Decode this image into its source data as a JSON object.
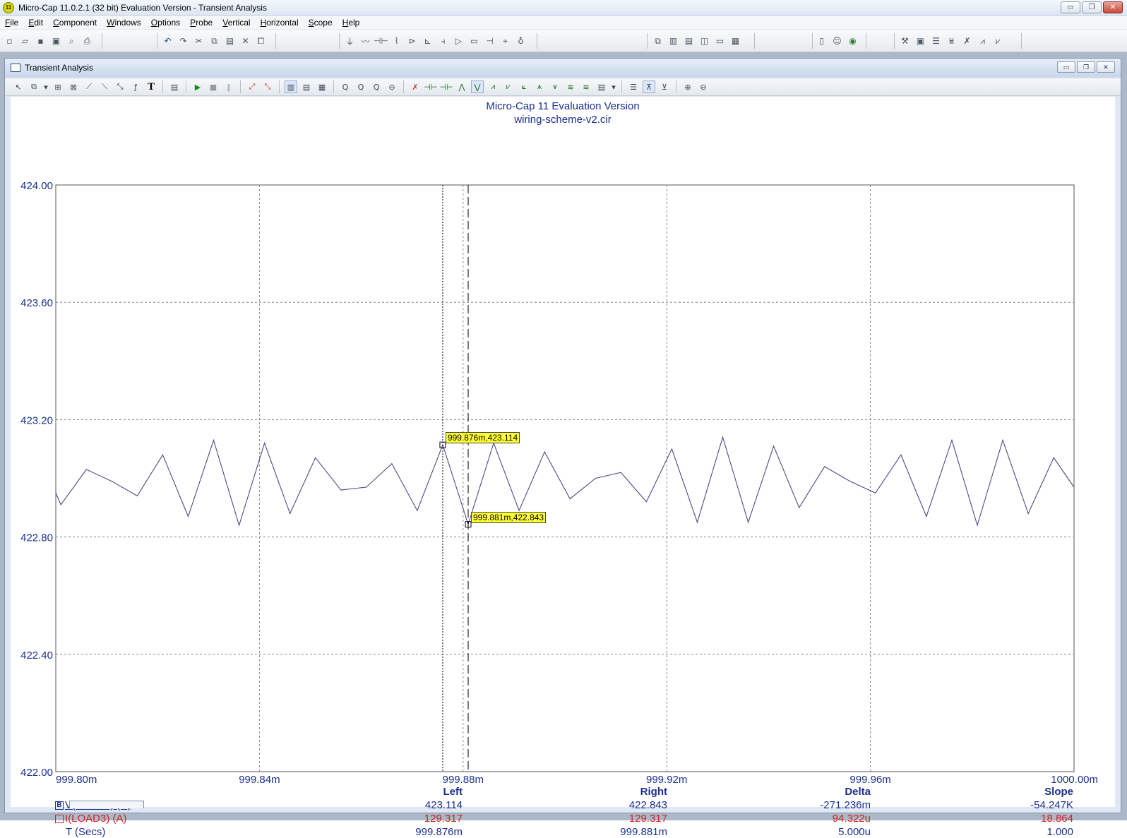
{
  "window": {
    "title": "Micro-Cap 11.0.2.1 (32 bit) Evaluation Version - Transient Analysis",
    "app_icon": "11",
    "controls": {
      "minimize": "▭",
      "maximize": "❐",
      "close": "✕"
    }
  },
  "menu": [
    {
      "u": "F",
      "rest": "ile"
    },
    {
      "u": "E",
      "rest": "dit"
    },
    {
      "u": "C",
      "rest": "omponent"
    },
    {
      "u": "W",
      "rest": "indows"
    },
    {
      "u": "O",
      "rest": "ptions"
    },
    {
      "u": "P",
      "rest": "robe"
    },
    {
      "u": "V",
      "rest": "ertical"
    },
    {
      "u": "H",
      "rest": "orizontal"
    },
    {
      "u": "S",
      "rest": "cope"
    },
    {
      "u": "H",
      "rest": "elp"
    }
  ],
  "child": {
    "title": "Transient Analysis"
  },
  "chart_data": {
    "type": "line",
    "title": "Micro-Cap 11 Evaluation Version",
    "subtitle": "wiring-scheme-v2.cir",
    "y_ticks": [
      "424.00",
      "423.60",
      "423.20",
      "422.80",
      "422.40",
      "422.00"
    ],
    "ylim": [
      422.0,
      424.0
    ],
    "x_ticks": [
      "999.80m",
      "999.84m",
      "999.88m",
      "999.92m",
      "999.96m",
      "1000.00m"
    ],
    "xlim": [
      999.8,
      1000.0
    ],
    "x_unit": "ms",
    "grid": true,
    "series": [
      {
        "name": "V(LOAD3) (V)",
        "color": "#4a4a8a",
        "x": [
          999.8,
          999.801,
          999.806,
          999.811,
          999.816,
          999.821,
          999.826,
          999.831,
          999.836,
          999.841,
          999.846,
          999.851,
          999.856,
          999.861,
          999.866,
          999.871,
          999.876,
          999.881,
          999.886,
          999.891,
          999.896,
          999.901,
          999.906,
          999.911,
          999.916,
          999.921,
          999.926,
          999.931,
          999.936,
          999.941,
          999.946,
          999.951,
          999.956,
          999.961,
          999.966,
          999.971,
          999.976,
          999.981,
          999.986,
          999.991,
          999.996,
          1000.0
        ],
        "y": [
          422.95,
          422.91,
          423.03,
          422.99,
          422.94,
          423.08,
          422.87,
          423.13,
          422.84,
          423.12,
          422.88,
          423.07,
          422.96,
          422.97,
          423.05,
          422.89,
          423.114,
          422.843,
          423.12,
          422.89,
          423.09,
          422.93,
          423.0,
          423.02,
          422.92,
          423.1,
          422.85,
          423.14,
          422.85,
          423.11,
          422.9,
          423.04,
          422.99,
          422.95,
          423.08,
          422.87,
          423.13,
          422.84,
          423.13,
          422.88,
          423.07,
          422.97
        ]
      }
    ],
    "cursors": {
      "left_x": 999.876,
      "right_x": 999.881,
      "left_label": "999.876m,423.114",
      "right_label": "999.881m,422.843",
      "left_y": 423.114,
      "right_y": 422.843
    }
  },
  "cursor_table": {
    "headers": {
      "left": "Left",
      "right": "Right",
      "delta": "Delta",
      "slope": "Slope"
    },
    "rows": [
      {
        "marker": "B",
        "name": "V(LOAD3) (V)",
        "color": "#1a2f8f",
        "left": "423.114",
        "right": "422.843",
        "delta": "-271.236m",
        "slope": "-54.247K"
      },
      {
        "marker": "",
        "name": "I(LOAD3) (A)",
        "color": "#cc2222",
        "left": "129.317",
        "right": "129.317",
        "delta": "94.322u",
        "slope": "18.864"
      },
      {
        "marker": "",
        "name": "T (Secs)",
        "color": "#1a2f8f",
        "left": "999.876m",
        "right": "999.881m",
        "delta": "5.000u",
        "slope": "1.000"
      }
    ]
  }
}
